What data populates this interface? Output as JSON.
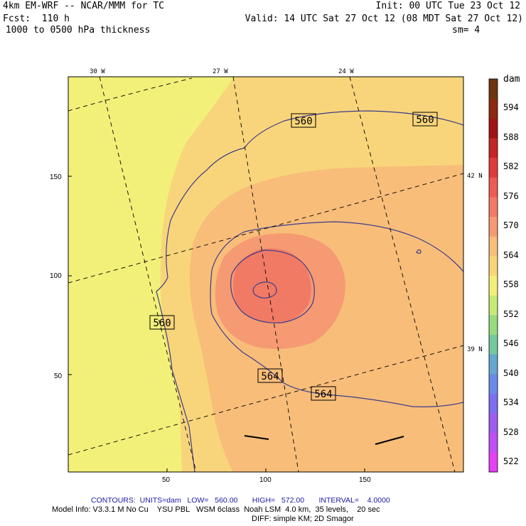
{
  "header": {
    "model": "4km EM-WRF -- NCAR/MMM for TC",
    "forecast": "Fcst:  110 h",
    "field": " 1000 to 0500 hPa thickness",
    "init": "Init: 00 UTC Tue 23 Oct 12",
    "valid": "Valid: 14 UTC Sat 27 Oct 12 (08 MDT Sat 27 Oct 12)",
    "smoothing": "sm= 4"
  },
  "map": {
    "longitude_labels": [
      "30 W",
      "27 W",
      "24 W"
    ],
    "latitude_labels": [
      "42 N",
      "39 N"
    ],
    "y_axis_ticks": [
      "150",
      "100",
      "50"
    ],
    "x_axis_ticks": [
      "50",
      "100",
      "150"
    ],
    "grid_x_range": [
      0,
      200
    ],
    "grid_y_range": [
      0,
      200
    ],
    "contour_labels": [
      "560",
      "560",
      "560",
      "564",
      "564"
    ],
    "colors": {
      "background": "#f2f079",
      "band_560": "#f8d57a",
      "band_564": "#f8bd79",
      "band_568": "#f59a72",
      "band_572": "#f17a65",
      "contour_line": "#3d3d8a"
    }
  },
  "colorbar": {
    "unit": "dam",
    "values": [
      594,
      588,
      582,
      576,
      570,
      564,
      558,
      552,
      546,
      540,
      534,
      528,
      522
    ],
    "levels": [
      {
        "from": 520,
        "to": 524,
        "color": "#e442f2"
      },
      {
        "from": 524,
        "to": 528,
        "color": "#c04ff5"
      },
      {
        "from": 528,
        "to": 532,
        "color": "#9e5cf0"
      },
      {
        "from": 532,
        "to": 536,
        "color": "#7d6fee"
      },
      {
        "from": 536,
        "to": 540,
        "color": "#6a8ae6"
      },
      {
        "from": 540,
        "to": 544,
        "color": "#65a7cf"
      },
      {
        "from": 544,
        "to": 548,
        "color": "#74c89c"
      },
      {
        "from": 548,
        "to": 552,
        "color": "#98db7c"
      },
      {
        "from": 552,
        "to": 556,
        "color": "#c6ea7a"
      },
      {
        "from": 556,
        "to": 560,
        "color": "#f2f079"
      },
      {
        "from": 560,
        "to": 564,
        "color": "#f8d57a"
      },
      {
        "from": 564,
        "to": 568,
        "color": "#f8bd79"
      },
      {
        "from": 568,
        "to": 572,
        "color": "#f59a72"
      },
      {
        "from": 572,
        "to": 576,
        "color": "#f17a65"
      },
      {
        "from": 576,
        "to": 580,
        "color": "#ee5b55"
      },
      {
        "from": 580,
        "to": 584,
        "color": "#e03c3c"
      },
      {
        "from": 584,
        "to": 588,
        "color": "#c42626"
      },
      {
        "from": 588,
        "to": 592,
        "color": "#a11414"
      },
      {
        "from": 592,
        "to": 596,
        "color": "#8c2a10"
      },
      {
        "from": 596,
        "to": 600,
        "color": "#6e3510"
      }
    ]
  },
  "footer": {
    "contours": "CONTOURS:  UNITS=dam   LOW=   560.00       HIGH=   572.00       INTERVAL=    4.0000",
    "model_info": "Model Info: V3.3.1 M No Cu    YSU PBL   WSM 6class  Noah LSM  4.0 km,  35 levels,    20 sec",
    "diff": "DIFF: simple KM; 2D Smagor"
  }
}
